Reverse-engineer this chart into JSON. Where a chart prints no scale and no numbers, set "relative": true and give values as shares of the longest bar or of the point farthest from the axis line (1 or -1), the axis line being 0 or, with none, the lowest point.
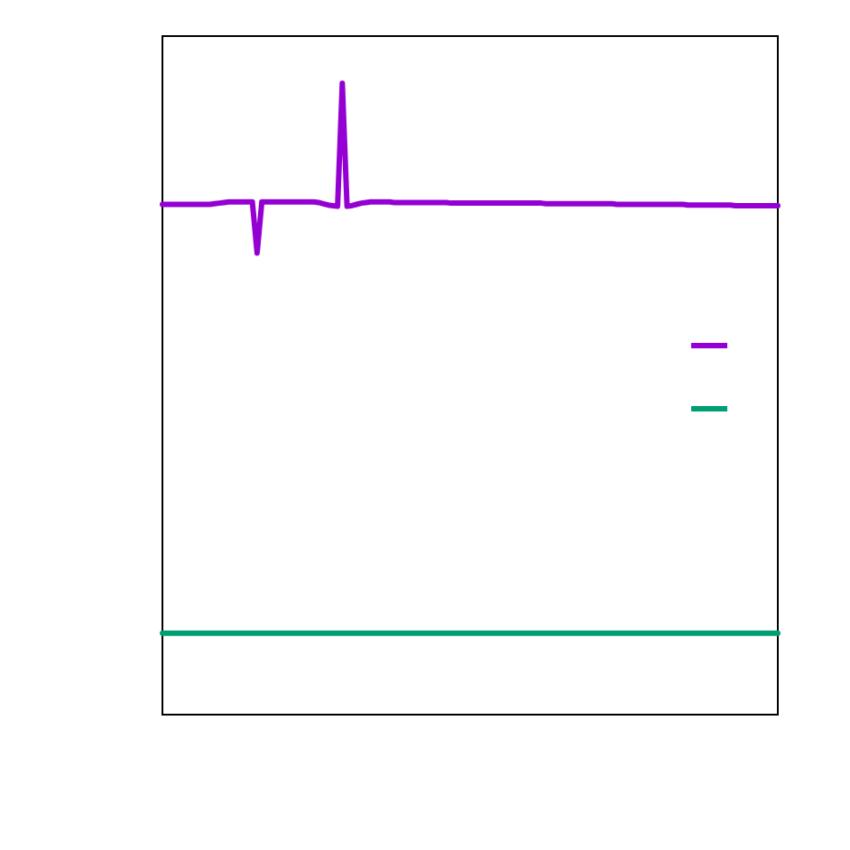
{
  "chart_data": {
    "type": "line",
    "relative": true,
    "categories": [
      null,
      null,
      null,
      null,
      null,
      null,
      null,
      null,
      null,
      null,
      null,
      null,
      null,
      null,
      null,
      null,
      null,
      null,
      null,
      null,
      null,
      null,
      null,
      null,
      null,
      null,
      null,
      null,
      null,
      null,
      null,
      null,
      null,
      null,
      null,
      null,
      null,
      null,
      null,
      null,
      null,
      null,
      null,
      null,
      null,
      null,
      null,
      null,
      null,
      null,
      null,
      null,
      null,
      null,
      null,
      null,
      null,
      null,
      null,
      null,
      null,
      null,
      null,
      null,
      null,
      null,
      null,
      null,
      null,
      null,
      null,
      null,
      null,
      null,
      null,
      null,
      null,
      null,
      null,
      null,
      null,
      null,
      null,
      null,
      null,
      null,
      null,
      null,
      null,
      null,
      null,
      null,
      null,
      null,
      null,
      null,
      null,
      null,
      null,
      null,
      null,
      null,
      null,
      null,
      null,
      null,
      null,
      null,
      null,
      null,
      null,
      null,
      null,
      null,
      null,
      null,
      null,
      null,
      null,
      null,
      null,
      null,
      null,
      null,
      null,
      null,
      null,
      null,
      null,
      null,
      null
    ],
    "series": [
      {
        "color": "#9400d3",
        "values": [
          0.808,
          0.808,
          0.808,
          0.808,
          0.808,
          0.808,
          0.808,
          0.808,
          0.808,
          0.808,
          0.808,
          0.809,
          0.81,
          0.811,
          0.812,
          0.812,
          0.812,
          0.812,
          0.812,
          0.812,
          0.731,
          0.812,
          0.812,
          0.812,
          0.812,
          0.812,
          0.812,
          0.812,
          0.812,
          0.812,
          0.812,
          0.812,
          0.812,
          0.811,
          0.809,
          0.807,
          0.806,
          0.805,
          1,
          0.805,
          0.806,
          0.808,
          0.81,
          0.811,
          0.812,
          0.812,
          0.812,
          0.812,
          0.812,
          0.811,
          0.811,
          0.811,
          0.811,
          0.811,
          0.811,
          0.811,
          0.811,
          0.811,
          0.811,
          0.811,
          0.811,
          0.81,
          0.81,
          0.81,
          0.81,
          0.81,
          0.81,
          0.81,
          0.81,
          0.81,
          0.81,
          0.81,
          0.81,
          0.81,
          0.81,
          0.81,
          0.81,
          0.81,
          0.81,
          0.81,
          0.81,
          0.809,
          0.809,
          0.809,
          0.809,
          0.809,
          0.809,
          0.809,
          0.809,
          0.809,
          0.809,
          0.809,
          0.809,
          0.809,
          0.809,
          0.809,
          0.808,
          0.808,
          0.808,
          0.808,
          0.808,
          0.808,
          0.808,
          0.808,
          0.808,
          0.808,
          0.808,
          0.808,
          0.808,
          0.808,
          0.808,
          0.807,
          0.807,
          0.807,
          0.807,
          0.807,
          0.807,
          0.807,
          0.807,
          0.807,
          0.807,
          0.806,
          0.806,
          0.806,
          0.806,
          0.806,
          0.806,
          0.806,
          0.806,
          0.806,
          0.806
        ]
      },
      {
        "color": "#009e73",
        "values": [
          0.129,
          0.129,
          0.129,
          0.129,
          0.129,
          0.129,
          0.129,
          0.129,
          0.129,
          0.129,
          0.129,
          0.129,
          0.129,
          0.129,
          0.129,
          0.129,
          0.129,
          0.129,
          0.129,
          0.129,
          0.129,
          0.129,
          0.129,
          0.129,
          0.129,
          0.129,
          0.129,
          0.129,
          0.129,
          0.129,
          0.129,
          0.129,
          0.129,
          0.129,
          0.129,
          0.129,
          0.129,
          0.129,
          0.129,
          0.129,
          0.129,
          0.129,
          0.129,
          0.129,
          0.129,
          0.129,
          0.129,
          0.129,
          0.129,
          0.129,
          0.129,
          0.129,
          0.129,
          0.129,
          0.129,
          0.129,
          0.129,
          0.129,
          0.129,
          0.129,
          0.129,
          0.129,
          0.129,
          0.129,
          0.129,
          0.129,
          0.129,
          0.129,
          0.129,
          0.129,
          0.129,
          0.129,
          0.129,
          0.129,
          0.129,
          0.129,
          0.129,
          0.129,
          0.129,
          0.129,
          0.129,
          0.129,
          0.129,
          0.129,
          0.129,
          0.129,
          0.129,
          0.129,
          0.129,
          0.129,
          0.129,
          0.129,
          0.129,
          0.129,
          0.129,
          0.129,
          0.129,
          0.129,
          0.129,
          0.129,
          0.129,
          0.129,
          0.129,
          0.129,
          0.129,
          0.129,
          0.129,
          0.129,
          0.129,
          0.129,
          0.129,
          0.129,
          0.129,
          0.129,
          0.129,
          0.129,
          0.129,
          0.129,
          0.129,
          0.129,
          0.129,
          0.129,
          0.129,
          0.129,
          0.129,
          0.129,
          0.129,
          0.129,
          0.129,
          0.129,
          0.129
        ]
      }
    ]
  }
}
